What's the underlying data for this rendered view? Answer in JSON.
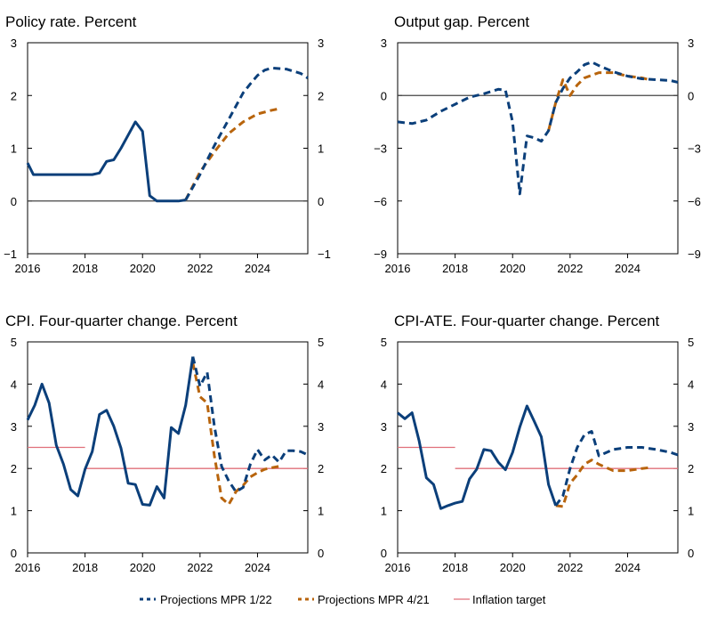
{
  "colors": {
    "mpr_1_22": "#0b3f7a",
    "mpr_4_21": "#b8640c",
    "inflation_target": "#e0707a",
    "axis": "#000000",
    "zero_line": "#444444"
  },
  "legend": {
    "items": [
      {
        "key": "mpr_1_22",
        "label": "Projections MPR 1/22",
        "style": "dash",
        "color": "#0b3f7a"
      },
      {
        "key": "mpr_4_21",
        "label": "Projections MPR 4/21",
        "style": "dash",
        "color": "#b8640c"
      },
      {
        "key": "target",
        "label": "Inflation target",
        "style": "solid",
        "color": "#e0707a"
      }
    ]
  },
  "chart_data": [
    {
      "type": "line",
      "title": "Policy rate. Percent",
      "xlim": [
        2016,
        2025.75
      ],
      "ylim": [
        -1,
        3
      ],
      "yticks": [
        -1,
        0,
        1,
        2,
        3
      ],
      "ytick_labels": [
        "−1",
        "0",
        "1",
        "2",
        "3"
      ],
      "xticks": [
        2016,
        2018,
        2020,
        2022,
        2024
      ],
      "zero_line": 0,
      "series": [
        {
          "name": "Actual (MPR 1/22)",
          "key": "mpr_1_22",
          "style": "solid",
          "x": [
            2016.0,
            2016.2,
            2016.5,
            2017.0,
            2017.5,
            2018.0,
            2018.25,
            2018.5,
            2018.75,
            2019.0,
            2019.25,
            2019.5,
            2019.75,
            2020.0,
            2020.25,
            2020.5,
            2020.75,
            2021.0,
            2021.25,
            2021.5
          ],
          "y": [
            0.72,
            0.5,
            0.5,
            0.5,
            0.5,
            0.5,
            0.5,
            0.53,
            0.75,
            0.78,
            1.0,
            1.25,
            1.5,
            1.32,
            0.1,
            0.0,
            0.0,
            0.0,
            0.0,
            0.02
          ]
        },
        {
          "name": "Projections MPR 1/22",
          "key": "mpr_1_22",
          "style": "dash",
          "x": [
            2021.5,
            2022.0,
            2022.5,
            2023.0,
            2023.5,
            2023.75,
            2024.0,
            2024.25,
            2024.5,
            2025.0,
            2025.5,
            2025.75
          ],
          "y": [
            0.02,
            0.5,
            1.05,
            1.55,
            2.05,
            2.22,
            2.38,
            2.48,
            2.52,
            2.5,
            2.42,
            2.33
          ]
        },
        {
          "name": "Projections MPR 4/21",
          "key": "mpr_4_21",
          "style": "dash",
          "x": [
            2021.5,
            2022.0,
            2022.5,
            2023.0,
            2023.5,
            2024.0,
            2024.5,
            2024.75
          ],
          "y": [
            0.02,
            0.55,
            0.93,
            1.28,
            1.5,
            1.65,
            1.72,
            1.75
          ]
        }
      ]
    },
    {
      "type": "line",
      "title": "Output gap. Percent",
      "xlim": [
        2016,
        2025.75
      ],
      "ylim": [
        -9,
        3
      ],
      "yticks": [
        -9,
        -6,
        -3,
        0,
        3
      ],
      "ytick_labels": [
        "−9",
        "−6",
        "−3",
        "0",
        "3"
      ],
      "xticks": [
        2016,
        2018,
        2020,
        2022,
        2024
      ],
      "zero_line": 0,
      "series": [
        {
          "name": "Projections MPR 1/22",
          "key": "mpr_1_22",
          "style": "dash",
          "x": [
            2016.0,
            2016.5,
            2017.0,
            2017.5,
            2018.0,
            2018.5,
            2019.0,
            2019.5,
            2019.75,
            2020.0,
            2020.25,
            2020.5,
            2020.75,
            2021.0,
            2021.25,
            2021.5,
            2021.75,
            2022.0,
            2022.25,
            2022.5,
            2022.75,
            2023.0,
            2023.5,
            2024.0,
            2024.5,
            2025.0,
            2025.5,
            2025.75
          ],
          "y": [
            -1.5,
            -1.6,
            -1.4,
            -0.9,
            -0.5,
            -0.1,
            0.1,
            0.35,
            0.3,
            -1.5,
            -5.6,
            -2.3,
            -2.4,
            -2.6,
            -2.0,
            -0.4,
            0.4,
            1.0,
            1.35,
            1.75,
            1.9,
            1.7,
            1.35,
            1.1,
            0.95,
            0.9,
            0.85,
            0.75
          ]
        },
        {
          "name": "Projections MPR 4/21",
          "key": "mpr_4_21",
          "style": "dash",
          "x": [
            2021.25,
            2021.5,
            2021.75,
            2022.0,
            2022.25,
            2022.5,
            2023.0,
            2023.5,
            2024.0,
            2024.5,
            2024.75
          ],
          "y": [
            -2.0,
            -0.4,
            0.9,
            0.0,
            0.6,
            1.0,
            1.3,
            1.3,
            1.1,
            1.0,
            0.9
          ]
        }
      ]
    },
    {
      "type": "line",
      "title": "CPI. Four-quarter change. Percent",
      "xlim": [
        2016,
        2025.75
      ],
      "ylim": [
        0,
        5
      ],
      "yticks": [
        0,
        1,
        2,
        3,
        4,
        5
      ],
      "ytick_labels": [
        "0",
        "1",
        "2",
        "3",
        "4",
        "5"
      ],
      "xticks": [
        2016,
        2018,
        2020,
        2022,
        2024
      ],
      "target_segments": [
        {
          "x": [
            2016,
            2018
          ],
          "y": 2.5
        },
        {
          "x": [
            2018,
            2025.75
          ],
          "y": 2.0
        }
      ],
      "series": [
        {
          "name": "Actual (MPR 1/22)",
          "key": "mpr_1_22",
          "style": "solid",
          "x": [
            2016.0,
            2016.25,
            2016.5,
            2016.75,
            2017.0,
            2017.25,
            2017.5,
            2017.75,
            2018.0,
            2018.25,
            2018.5,
            2018.75,
            2019.0,
            2019.25,
            2019.5,
            2019.75,
            2020.0,
            2020.25,
            2020.5,
            2020.75,
            2021.0,
            2021.25,
            2021.5,
            2021.75
          ],
          "y": [
            3.15,
            3.5,
            4.0,
            3.55,
            2.55,
            2.1,
            1.5,
            1.35,
            1.98,
            2.4,
            3.28,
            3.38,
            3.0,
            2.48,
            1.65,
            1.62,
            1.15,
            1.13,
            1.57,
            1.3,
            2.97,
            2.83,
            3.5,
            4.65
          ]
        },
        {
          "name": "Projections MPR 1/22",
          "key": "mpr_1_22",
          "style": "dash",
          "x": [
            2021.75,
            2022.0,
            2022.25,
            2022.5,
            2022.75,
            2023.0,
            2023.25,
            2023.5,
            2023.75,
            2024.0,
            2024.25,
            2024.5,
            2024.75,
            2025.0,
            2025.25,
            2025.5,
            2025.75
          ],
          "y": [
            4.65,
            3.95,
            4.28,
            3.0,
            2.05,
            1.7,
            1.45,
            1.55,
            2.1,
            2.45,
            2.2,
            2.32,
            2.15,
            2.42,
            2.42,
            2.4,
            2.32
          ]
        },
        {
          "name": "Projections MPR 4/21",
          "key": "mpr_4_21",
          "style": "dash",
          "x": [
            2021.75,
            2022.0,
            2022.25,
            2022.5,
            2022.75,
            2023.0,
            2023.25,
            2023.5,
            2023.75,
            2024.0,
            2024.25,
            2024.5,
            2024.75
          ],
          "y": [
            4.5,
            3.7,
            3.55,
            2.3,
            1.3,
            1.15,
            1.45,
            1.6,
            1.8,
            1.9,
            1.98,
            2.02,
            2.05
          ]
        }
      ]
    },
    {
      "type": "line",
      "title": "CPI-ATE. Four-quarter change. Percent",
      "xlim": [
        2016,
        2025.75
      ],
      "ylim": [
        0,
        5
      ],
      "yticks": [
        0,
        1,
        2,
        3,
        4,
        5
      ],
      "ytick_labels": [
        "0",
        "1",
        "2",
        "3",
        "4",
        "5"
      ],
      "xticks": [
        2016,
        2018,
        2020,
        2022,
        2024
      ],
      "target_segments": [
        {
          "x": [
            2016,
            2018
          ],
          "y": 2.5
        },
        {
          "x": [
            2018,
            2025.75
          ],
          "y": 2.0
        }
      ],
      "series": [
        {
          "name": "Actual (MPR 1/22)",
          "key": "mpr_1_22",
          "style": "solid",
          "x": [
            2016.0,
            2016.25,
            2016.5,
            2016.75,
            2017.0,
            2017.25,
            2017.5,
            2017.75,
            2018.0,
            2018.25,
            2018.5,
            2018.75,
            2019.0,
            2019.25,
            2019.5,
            2019.75,
            2020.0,
            2020.25,
            2020.5,
            2020.75,
            2021.0,
            2021.25,
            2021.5
          ],
          "y": [
            3.32,
            3.18,
            3.32,
            2.65,
            1.78,
            1.62,
            1.05,
            1.12,
            1.18,
            1.22,
            1.75,
            1.98,
            2.45,
            2.42,
            2.15,
            1.97,
            2.38,
            2.98,
            3.48,
            3.12,
            2.75,
            1.62,
            1.12
          ]
        },
        {
          "name": "Projections MPR 1/22",
          "key": "mpr_1_22",
          "style": "dash",
          "x": [
            2021.5,
            2021.75,
            2022.0,
            2022.25,
            2022.5,
            2022.75,
            2023.0,
            2023.5,
            2024.0,
            2024.5,
            2025.0,
            2025.5,
            2025.75
          ],
          "y": [
            1.12,
            1.35,
            2.0,
            2.5,
            2.8,
            2.88,
            2.3,
            2.45,
            2.5,
            2.5,
            2.45,
            2.38,
            2.32
          ]
        },
        {
          "name": "Projections MPR 4/21",
          "key": "mpr_4_21",
          "style": "dash",
          "x": [
            2021.5,
            2021.75,
            2022.0,
            2022.25,
            2022.5,
            2022.75,
            2023.0,
            2023.5,
            2024.0,
            2024.5,
            2024.75
          ],
          "y": [
            1.12,
            1.1,
            1.65,
            1.85,
            2.1,
            2.2,
            2.1,
            1.95,
            1.95,
            2.0,
            2.02
          ]
        }
      ]
    }
  ]
}
